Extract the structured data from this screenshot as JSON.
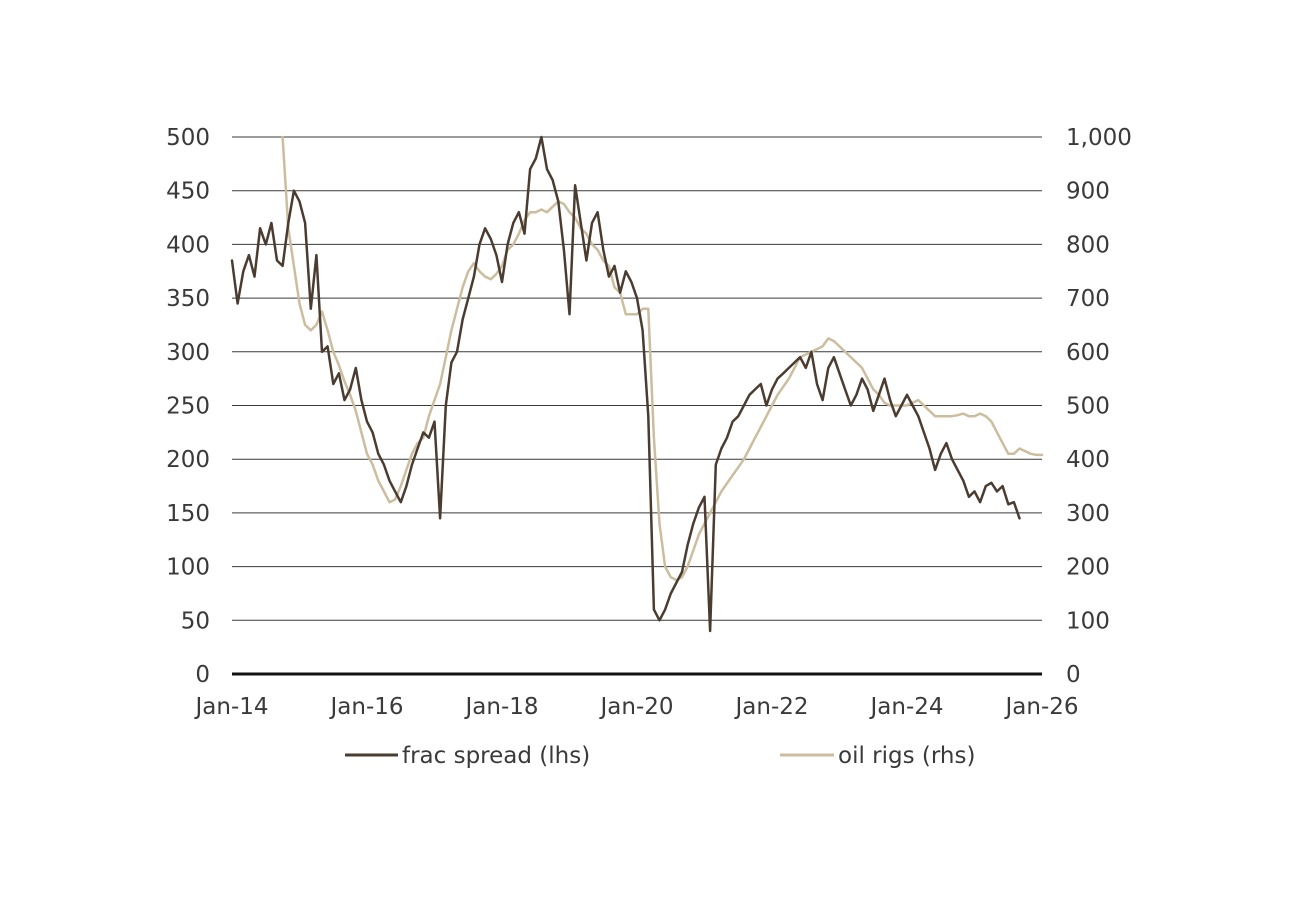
{
  "chart_data": {
    "type": "line",
    "title": "",
    "xlabel": "",
    "ylabel_left": "",
    "ylabel_right": "",
    "grid": true,
    "legend_position": "bottom",
    "x_range": [
      "2014-01",
      "2026-01"
    ],
    "x_ticks": [
      {
        "date": "2014-01",
        "label": "Jan-14"
      },
      {
        "date": "2016-01",
        "label": "Jan-16"
      },
      {
        "date": "2018-01",
        "label": "Jan-18"
      },
      {
        "date": "2020-01",
        "label": "Jan-20"
      },
      {
        "date": "2022-01",
        "label": "Jan-22"
      },
      {
        "date": "2024-01",
        "label": "Jan-24"
      },
      {
        "date": "2026-01",
        "label": "Jan-26"
      }
    ],
    "y_left": {
      "min": 0,
      "max": 500,
      "ticks": [
        0,
        50,
        100,
        150,
        200,
        250,
        300,
        350,
        400,
        450,
        500
      ],
      "tick_labels": [
        "0",
        "50",
        "100",
        "150",
        "200",
        "250",
        "300",
        "350",
        "400",
        "450",
        "500"
      ]
    },
    "y_right": {
      "min": 0,
      "max": 1000,
      "ticks": [
        0,
        100,
        200,
        300,
        400,
        500,
        600,
        700,
        800,
        900,
        1000
      ],
      "tick_labels": [
        "0",
        "100",
        "200",
        "300",
        "400",
        "500",
        "600",
        "700",
        "800",
        "900",
        "1,000"
      ]
    },
    "series": [
      {
        "name": "frac spread (lhs)",
        "axis": "left",
        "color": "#4a3c30",
        "points": [
          [
            "2014-01",
            385
          ],
          [
            "2014-02",
            345
          ],
          [
            "2014-03",
            375
          ],
          [
            "2014-04",
            390
          ],
          [
            "2014-05",
            370
          ],
          [
            "2014-06",
            415
          ],
          [
            "2014-07",
            400
          ],
          [
            "2014-08",
            420
          ],
          [
            "2014-09",
            385
          ],
          [
            "2014-10",
            380
          ],
          [
            "2014-11",
            420
          ],
          [
            "2014-12",
            450
          ],
          [
            "2015-01",
            440
          ],
          [
            "2015-02",
            420
          ],
          [
            "2015-03",
            340
          ],
          [
            "2015-04",
            390
          ],
          [
            "2015-05",
            300
          ],
          [
            "2015-06",
            305
          ],
          [
            "2015-07",
            270
          ],
          [
            "2015-08",
            280
          ],
          [
            "2015-09",
            255
          ],
          [
            "2015-10",
            265
          ],
          [
            "2015-11",
            285
          ],
          [
            "2015-12",
            255
          ],
          [
            "2016-01",
            235
          ],
          [
            "2016-02",
            225
          ],
          [
            "2016-03",
            205
          ],
          [
            "2016-04",
            195
          ],
          [
            "2016-05",
            180
          ],
          [
            "2016-06",
            170
          ],
          [
            "2016-07",
            160
          ],
          [
            "2016-08",
            175
          ],
          [
            "2016-09",
            195
          ],
          [
            "2016-10",
            210
          ],
          [
            "2016-11",
            225
          ],
          [
            "2016-12",
            220
          ],
          [
            "2017-01",
            235
          ],
          [
            "2017-02",
            145
          ],
          [
            "2017-03",
            250
          ],
          [
            "2017-04",
            290
          ],
          [
            "2017-05",
            300
          ],
          [
            "2017-06",
            330
          ],
          [
            "2017-07",
            350
          ],
          [
            "2017-08",
            370
          ],
          [
            "2017-09",
            400
          ],
          [
            "2017-10",
            415
          ],
          [
            "2017-11",
            405
          ],
          [
            "2017-12",
            390
          ],
          [
            "2018-01",
            365
          ],
          [
            "2018-02",
            400
          ],
          [
            "2018-03",
            420
          ],
          [
            "2018-04",
            430
          ],
          [
            "2018-05",
            410
          ],
          [
            "2018-06",
            470
          ],
          [
            "2018-07",
            480
          ],
          [
            "2018-08",
            500
          ],
          [
            "2018-09",
            470
          ],
          [
            "2018-10",
            460
          ],
          [
            "2018-11",
            440
          ],
          [
            "2018-12",
            395
          ],
          [
            "2019-01",
            335
          ],
          [
            "2019-02",
            455
          ],
          [
            "2019-03",
            420
          ],
          [
            "2019-04",
            385
          ],
          [
            "2019-05",
            420
          ],
          [
            "2019-06",
            430
          ],
          [
            "2019-07",
            395
          ],
          [
            "2019-08",
            370
          ],
          [
            "2019-09",
            380
          ],
          [
            "2019-10",
            355
          ],
          [
            "2019-11",
            375
          ],
          [
            "2019-12",
            365
          ],
          [
            "2020-01",
            350
          ],
          [
            "2020-02",
            320
          ],
          [
            "2020-03",
            240
          ],
          [
            "2020-04",
            60
          ],
          [
            "2020-05",
            50
          ],
          [
            "2020-06",
            60
          ],
          [
            "2020-07",
            75
          ],
          [
            "2020-08",
            85
          ],
          [
            "2020-09",
            95
          ],
          [
            "2020-10",
            120
          ],
          [
            "2020-11",
            140
          ],
          [
            "2020-12",
            155
          ],
          [
            "2021-01",
            165
          ],
          [
            "2021-02",
            40
          ],
          [
            "2021-03",
            195
          ],
          [
            "2021-04",
            210
          ],
          [
            "2021-05",
            220
          ],
          [
            "2021-06",
            235
          ],
          [
            "2021-07",
            240
          ],
          [
            "2021-08",
            250
          ],
          [
            "2021-09",
            260
          ],
          [
            "2021-10",
            265
          ],
          [
            "2021-11",
            270
          ],
          [
            "2021-12",
            250
          ],
          [
            "2022-01",
            265
          ],
          [
            "2022-02",
            275
          ],
          [
            "2022-03",
            280
          ],
          [
            "2022-04",
            285
          ],
          [
            "2022-05",
            290
          ],
          [
            "2022-06",
            295
          ],
          [
            "2022-07",
            285
          ],
          [
            "2022-08",
            300
          ],
          [
            "2022-09",
            270
          ],
          [
            "2022-10",
            255
          ],
          [
            "2022-11",
            285
          ],
          [
            "2022-12",
            295
          ],
          [
            "2023-01",
            280
          ],
          [
            "2023-02",
            265
          ],
          [
            "2023-03",
            250
          ],
          [
            "2023-04",
            260
          ],
          [
            "2023-05",
            275
          ],
          [
            "2023-06",
            265
          ],
          [
            "2023-07",
            245
          ],
          [
            "2023-08",
            260
          ],
          [
            "2023-09",
            275
          ],
          [
            "2023-10",
            255
          ],
          [
            "2023-11",
            240
          ],
          [
            "2023-12",
            250
          ],
          [
            "2024-01",
            260
          ],
          [
            "2024-02",
            250
          ],
          [
            "2024-03",
            240
          ],
          [
            "2024-04",
            225
          ],
          [
            "2024-05",
            210
          ],
          [
            "2024-06",
            190
          ],
          [
            "2024-07",
            205
          ],
          [
            "2024-08",
            215
          ],
          [
            "2024-09",
            200
          ],
          [
            "2024-10",
            190
          ],
          [
            "2024-11",
            180
          ],
          [
            "2024-12",
            165
          ],
          [
            "2025-01",
            170
          ],
          [
            "2025-02",
            160
          ],
          [
            "2025-03",
            175
          ],
          [
            "2025-04",
            178
          ],
          [
            "2025-05",
            170
          ],
          [
            "2025-06",
            175
          ],
          [
            "2025-07",
            158
          ],
          [
            "2025-08",
            160
          ],
          [
            "2025-09",
            145
          ]
        ]
      },
      {
        "name": "oil rigs (rhs)",
        "axis": "right",
        "color": "#cbbd9e",
        "points": [
          [
            "2014-10",
            1000
          ],
          [
            "2014-11",
            830
          ],
          [
            "2014-12",
            760
          ],
          [
            "2015-01",
            690
          ],
          [
            "2015-02",
            650
          ],
          [
            "2015-03",
            640
          ],
          [
            "2015-04",
            650
          ],
          [
            "2015-05",
            675
          ],
          [
            "2015-06",
            640
          ],
          [
            "2015-07",
            600
          ],
          [
            "2015-08",
            575
          ],
          [
            "2015-09",
            545
          ],
          [
            "2015-10",
            520
          ],
          [
            "2015-11",
            490
          ],
          [
            "2015-12",
            450
          ],
          [
            "2016-01",
            410
          ],
          [
            "2016-02",
            390
          ],
          [
            "2016-03",
            360
          ],
          [
            "2016-04",
            340
          ],
          [
            "2016-05",
            320
          ],
          [
            "2016-06",
            325
          ],
          [
            "2016-07",
            350
          ],
          [
            "2016-08",
            380
          ],
          [
            "2016-09",
            410
          ],
          [
            "2016-10",
            430
          ],
          [
            "2016-11",
            440
          ],
          [
            "2016-12",
            480
          ],
          [
            "2017-01",
            510
          ],
          [
            "2017-02",
            540
          ],
          [
            "2017-03",
            590
          ],
          [
            "2017-04",
            640
          ],
          [
            "2017-05",
            680
          ],
          [
            "2017-06",
            720
          ],
          [
            "2017-07",
            750
          ],
          [
            "2017-08",
            765
          ],
          [
            "2017-09",
            750
          ],
          [
            "2017-10",
            740
          ],
          [
            "2017-11",
            735
          ],
          [
            "2017-12",
            745
          ],
          [
            "2018-01",
            760
          ],
          [
            "2018-02",
            790
          ],
          [
            "2018-03",
            800
          ],
          [
            "2018-04",
            820
          ],
          [
            "2018-05",
            845
          ],
          [
            "2018-06",
            860
          ],
          [
            "2018-07",
            860
          ],
          [
            "2018-08",
            865
          ],
          [
            "2018-09",
            860
          ],
          [
            "2018-10",
            870
          ],
          [
            "2018-11",
            880
          ],
          [
            "2018-12",
            875
          ],
          [
            "2019-01",
            860
          ],
          [
            "2019-02",
            850
          ],
          [
            "2019-03",
            830
          ],
          [
            "2019-04",
            820
          ],
          [
            "2019-05",
            800
          ],
          [
            "2019-06",
            790
          ],
          [
            "2019-07",
            770
          ],
          [
            "2019-08",
            760
          ],
          [
            "2019-09",
            720
          ],
          [
            "2019-10",
            710
          ],
          [
            "2019-11",
            670
          ],
          [
            "2019-12",
            670
          ],
          [
            "2020-01",
            670
          ],
          [
            "2020-02",
            680
          ],
          [
            "2020-03",
            680
          ],
          [
            "2020-04",
            440
          ],
          [
            "2020-05",
            280
          ],
          [
            "2020-06",
            200
          ],
          [
            "2020-07",
            180
          ],
          [
            "2020-08",
            175
          ],
          [
            "2020-09",
            180
          ],
          [
            "2020-10",
            200
          ],
          [
            "2020-11",
            230
          ],
          [
            "2020-12",
            260
          ],
          [
            "2021-01",
            280
          ],
          [
            "2021-02",
            300
          ],
          [
            "2021-03",
            320
          ],
          [
            "2021-04",
            340
          ],
          [
            "2021-05",
            355
          ],
          [
            "2021-06",
            370
          ],
          [
            "2021-07",
            385
          ],
          [
            "2021-08",
            400
          ],
          [
            "2021-09",
            420
          ],
          [
            "2021-10",
            440
          ],
          [
            "2021-11",
            460
          ],
          [
            "2021-12",
            480
          ],
          [
            "2022-01",
            500
          ],
          [
            "2022-02",
            520
          ],
          [
            "2022-03",
            535
          ],
          [
            "2022-04",
            550
          ],
          [
            "2022-05",
            570
          ],
          [
            "2022-06",
            590
          ],
          [
            "2022-07",
            595
          ],
          [
            "2022-08",
            600
          ],
          [
            "2022-09",
            605
          ],
          [
            "2022-10",
            610
          ],
          [
            "2022-11",
            625
          ],
          [
            "2022-12",
            620
          ],
          [
            "2023-01",
            610
          ],
          [
            "2023-02",
            600
          ],
          [
            "2023-03",
            590
          ],
          [
            "2023-04",
            580
          ],
          [
            "2023-05",
            570
          ],
          [
            "2023-06",
            550
          ],
          [
            "2023-07",
            530
          ],
          [
            "2023-08",
            520
          ],
          [
            "2023-09",
            505
          ],
          [
            "2023-10",
            500
          ],
          [
            "2023-11",
            500
          ],
          [
            "2023-12",
            500
          ],
          [
            "2024-01",
            500
          ],
          [
            "2024-02",
            505
          ],
          [
            "2024-03",
            510
          ],
          [
            "2024-04",
            500
          ],
          [
            "2024-05",
            490
          ],
          [
            "2024-06",
            480
          ],
          [
            "2024-07",
            480
          ],
          [
            "2024-08",
            480
          ],
          [
            "2024-09",
            480
          ],
          [
            "2024-10",
            482
          ],
          [
            "2024-11",
            485
          ],
          [
            "2024-12",
            480
          ],
          [
            "2025-01",
            480
          ],
          [
            "2025-02",
            485
          ],
          [
            "2025-03",
            480
          ],
          [
            "2025-04",
            470
          ],
          [
            "2025-05",
            450
          ],
          [
            "2025-06",
            430
          ],
          [
            "2025-07",
            410
          ],
          [
            "2025-08",
            410
          ],
          [
            "2025-09",
            420
          ],
          [
            "2025-10",
            415
          ],
          [
            "2025-11",
            410
          ],
          [
            "2025-12",
            408
          ],
          [
            "2026-01",
            408
          ]
        ]
      }
    ]
  }
}
